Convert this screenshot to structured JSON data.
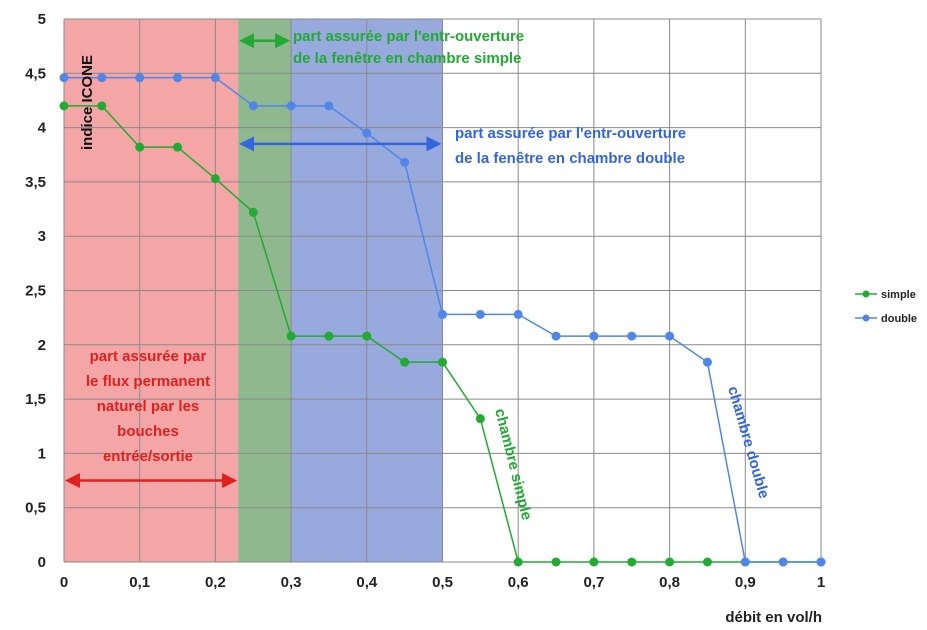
{
  "chart_data": {
    "type": "line",
    "title": "",
    "ylabel": "indice ICONE",
    "xlabel": "débit en vol/h",
    "xlim": [
      0,
      1
    ],
    "ylim": [
      0,
      5
    ],
    "x_ticks": [
      "0",
      "0,1",
      "0,2",
      "0,3",
      "0,4",
      "0,5",
      "0,6",
      "0,7",
      "0,8",
      "0,9",
      "1"
    ],
    "y_ticks": [
      "0",
      "0,5",
      "1",
      "1,5",
      "2",
      "2,5",
      "3",
      "3,5",
      "4",
      "4,5",
      "5"
    ],
    "grid": true,
    "legend_position": "right",
    "series": [
      {
        "name": "simple",
        "color": "#22aa33",
        "points": [
          [
            0,
            4.2
          ],
          [
            0.05,
            4.2
          ],
          [
            0.1,
            3.82
          ],
          [
            0.15,
            3.82
          ],
          [
            0.2,
            3.53
          ],
          [
            0.25,
            3.22
          ],
          [
            0.3,
            2.08
          ],
          [
            0.35,
            2.08
          ],
          [
            0.4,
            2.08
          ],
          [
            0.45,
            1.84
          ],
          [
            0.5,
            1.84
          ],
          [
            0.55,
            1.32
          ],
          [
            0.6,
            0
          ],
          [
            0.65,
            0
          ],
          [
            0.7,
            0
          ],
          [
            0.75,
            0
          ],
          [
            0.8,
            0
          ],
          [
            0.85,
            0
          ],
          [
            0.9,
            0
          ],
          [
            0.95,
            0
          ],
          [
            1,
            0
          ]
        ]
      },
      {
        "name": "double",
        "color": "#4f86e8",
        "points": [
          [
            0,
            4.46
          ],
          [
            0.05,
            4.46
          ],
          [
            0.1,
            4.46
          ],
          [
            0.15,
            4.46
          ],
          [
            0.2,
            4.46
          ],
          [
            0.25,
            4.2
          ],
          [
            0.3,
            4.2
          ],
          [
            0.35,
            4.2
          ],
          [
            0.4,
            3.95
          ],
          [
            0.45,
            3.68
          ],
          [
            0.5,
            2.28
          ],
          [
            0.55,
            2.28
          ],
          [
            0.6,
            2.28
          ],
          [
            0.65,
            2.08
          ],
          [
            0.7,
            2.08
          ],
          [
            0.75,
            2.08
          ],
          [
            0.8,
            2.08
          ],
          [
            0.85,
            1.84
          ],
          [
            0.9,
            0
          ],
          [
            0.95,
            0
          ],
          [
            1,
            0
          ]
        ]
      }
    ],
    "regions": [
      {
        "name": "flux-permanent",
        "x0": 0,
        "x1": 0.23,
        "color": "#f4a6a6"
      },
      {
        "name": "chambre-simple",
        "x0": 0.23,
        "x1": 0.3,
        "color": "#8fb88f"
      },
      {
        "name": "chambre-double",
        "x0": 0.3,
        "x1": 0.5,
        "color": "#97a9dd"
      }
    ],
    "annotations": {
      "simple_zone": [
        "part assurée par l'entr-ouverture",
        "de la fenêtre en chambre simple"
      ],
      "double_zone": [
        "part assurée par l'entr-ouverture",
        "de la fenêtre en chambre double"
      ],
      "permanent_zone": [
        "part assurée par",
        "le flux permanent",
        "naturel par les",
        "bouches",
        "entrée/sortie"
      ],
      "curve_simple": "chambre simple",
      "curve_double": "chambre double"
    },
    "arrows": {
      "permanent": {
        "x0": 0,
        "x1": 0.23,
        "y": 0.75,
        "color": "#e02020"
      },
      "simple": {
        "x0": 0.23,
        "x1": 0.3,
        "y": 4.8,
        "color": "#22aa33"
      },
      "double": {
        "x0": 0.23,
        "x1": 0.5,
        "y": 3.85,
        "color": "#3366dd"
      }
    },
    "colors": {
      "simple_text": "#22aa33",
      "double_text": "#3366dd",
      "permanent_text": "#e02020"
    }
  }
}
